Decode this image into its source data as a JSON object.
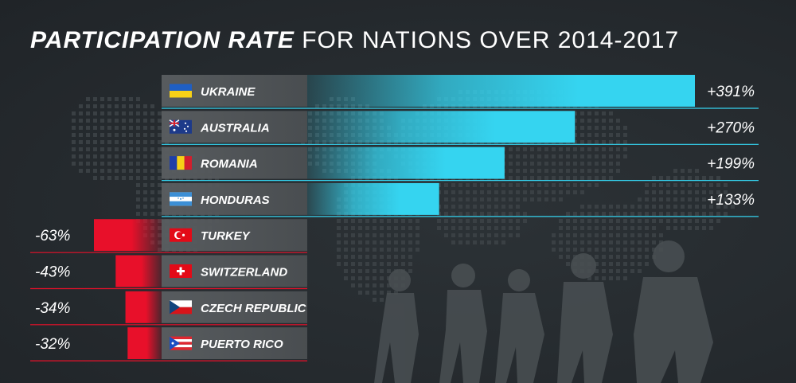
{
  "title": {
    "bold": "PARTICIPATION RATE",
    "light": "FOR NATIONS OVER 2014-2017"
  },
  "colors": {
    "positive": "#35d4f0",
    "negative": "#e8102a",
    "label_box": "#55595c"
  },
  "chart_data": {
    "type": "bar",
    "categories": [
      "UKRAINE",
      "AUSTRALIA",
      "ROMANIA",
      "HONDURAS",
      "TURKEY",
      "SWITZERLAND",
      "CZECH REPUBLIC",
      "PUERTO RICO"
    ],
    "values": [
      391,
      270,
      199,
      133,
      -63,
      -43,
      -34,
      -32
    ],
    "value_labels": [
      "+391%",
      "+270%",
      "+199%",
      "+133%",
      "-63%",
      "-43%",
      "-34%",
      "-32%"
    ],
    "flags": [
      "flag-ukraine-icon",
      "flag-australia-icon",
      "flag-romania-icon",
      "flag-honduras-icon",
      "flag-turkey-icon",
      "flag-switzerland-icon",
      "flag-czech-republic-icon",
      "flag-puerto-rico-icon"
    ],
    "title": "PARTICIPATION RATE FOR NATIONS OVER 2014-2017",
    "grid": false
  }
}
